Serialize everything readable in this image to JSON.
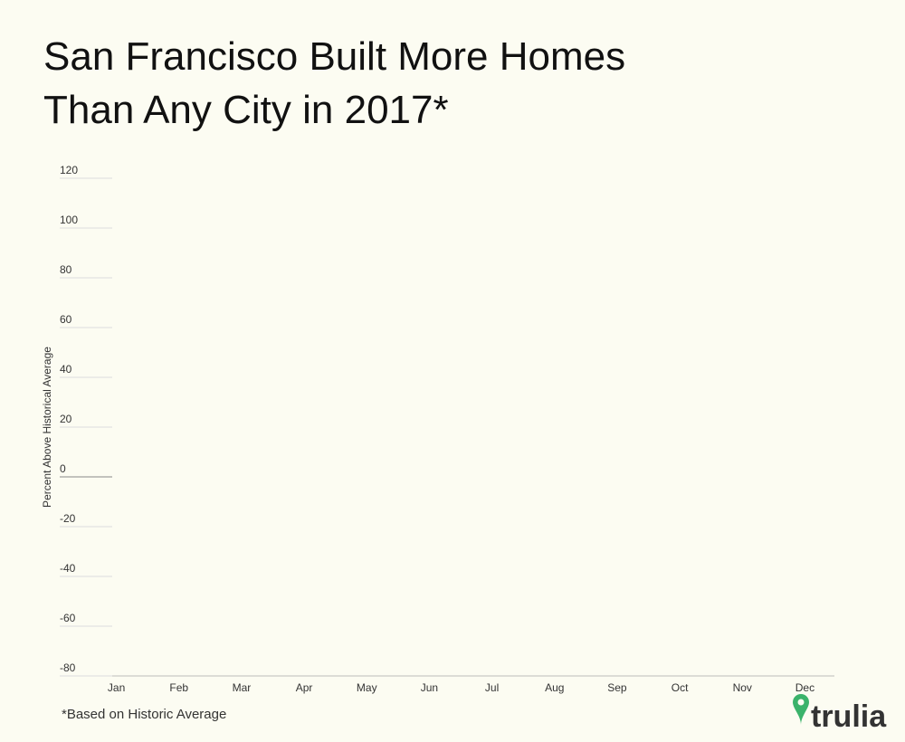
{
  "chart_data": {
    "type": "line",
    "title": [
      "San Francisco Built More Homes",
      "Than Any City in 2017*"
    ],
    "y_label": "Percent Above Historical Average",
    "categories": [
      "Jan",
      "Feb",
      "Mar",
      "Apr",
      "May",
      "Jun",
      "Jul",
      "Aug",
      "Sep",
      "Oct",
      "Nov",
      "Dec"
    ],
    "ylim": [
      -80,
      120
    ],
    "yticks": [
      -80,
      -60,
      -40,
      -20,
      0,
      20,
      40,
      60,
      80,
      100,
      120
    ],
    "grid": true,
    "footnote": "*Based on Historic Average",
    "logo": "trulia"
  }
}
